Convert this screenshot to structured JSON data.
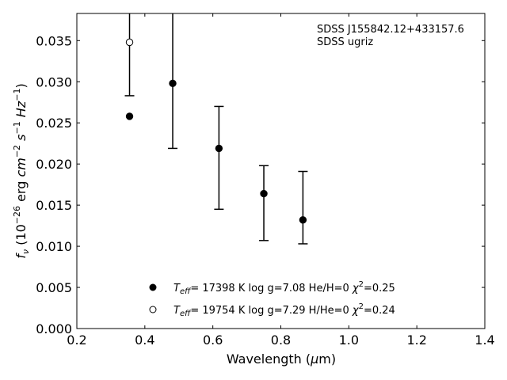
{
  "chart_data": {
    "type": "scatter",
    "xlabel": "Wavelength (μm)",
    "ylabel": "f_ν (10^-26 erg cm^-2 s^-1 Hz^-1)",
    "xlim": [
      0.2,
      1.4
    ],
    "ylim": [
      0.0,
      0.0383
    ],
    "xticks": [
      "0.2",
      "0.4",
      "0.6",
      "0.8",
      "1.0",
      "1.2",
      "1.4"
    ],
    "yticks": [
      "0.000",
      "0.005",
      "0.010",
      "0.015",
      "0.020",
      "0.025",
      "0.030",
      "0.035"
    ],
    "annotation": [
      "SDSS J155842.12+433157.6",
      "SDSS ugriz"
    ],
    "observed": {
      "x": [
        0.355,
        0.482,
        0.618,
        0.75,
        0.865
      ],
      "y": [
        0.0348,
        0.0298,
        0.0219,
        0.0164,
        0.0132
      ],
      "err_low": [
        0.0283,
        0.0219,
        0.0145,
        0.0107,
        0.0103
      ],
      "err_high": [
        0.0383,
        0.0383,
        0.027,
        0.0198,
        0.0191
      ]
    },
    "series": [
      {
        "name": "T_eff= 17398 K  log g=7.08  He/H=0  χ²=0.25",
        "marker": "filled-circle",
        "x": [
          0.355,
          0.482,
          0.618,
          0.75,
          0.865
        ],
        "y": [
          0.0258,
          0.0298,
          0.0219,
          0.0164,
          0.0132
        ]
      },
      {
        "name": "T_eff= 19754 K  log g=7.29  H/He=0  χ²=0.24",
        "marker": "open-circle",
        "x": [
          0.355
        ],
        "y": [
          0.0348
        ]
      }
    ],
    "colors": {
      "filled": "#000000",
      "open": "#ffffff",
      "stroke": "#000000"
    }
  }
}
